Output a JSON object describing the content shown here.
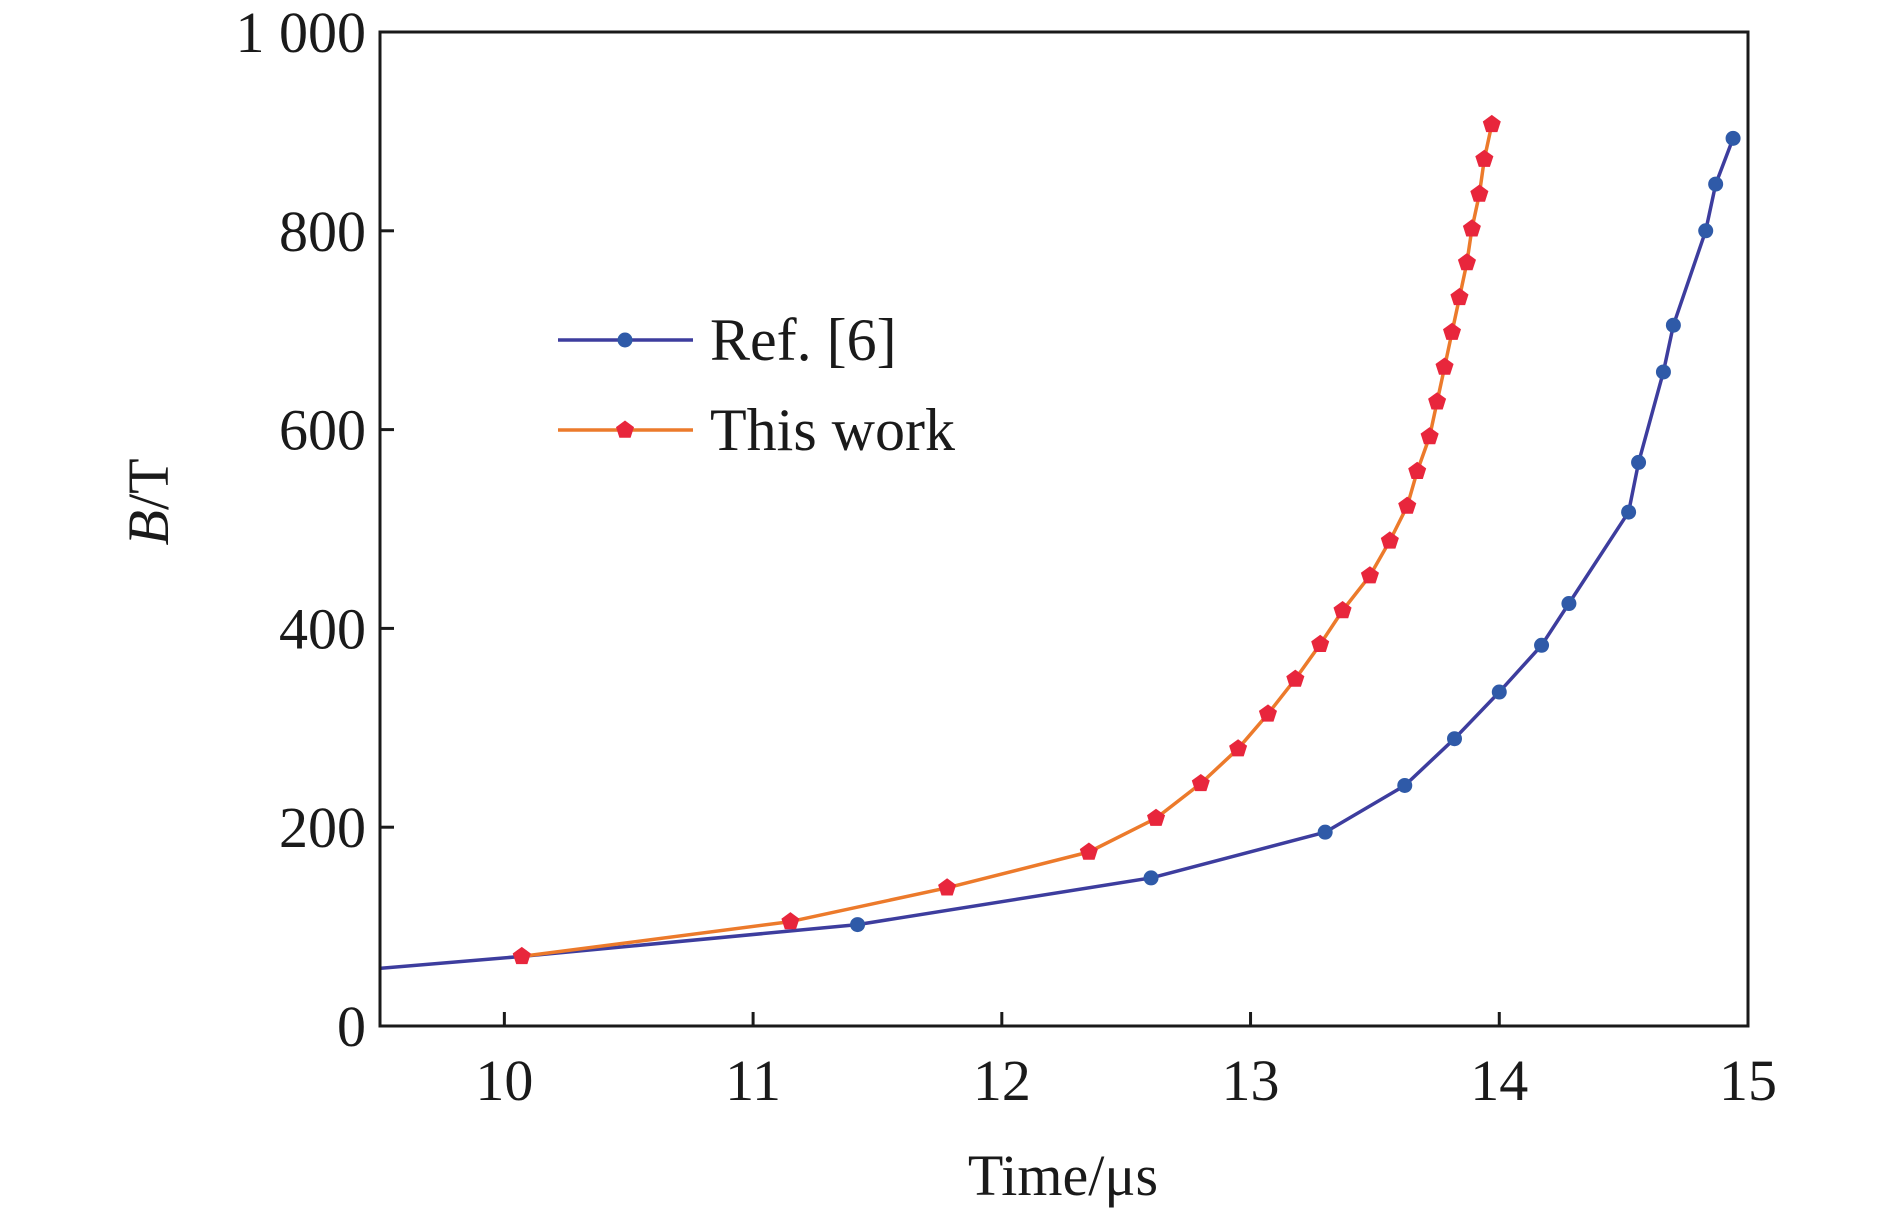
{
  "chart_data": {
    "type": "line",
    "xlabel": "Time/μs",
    "ylabel_var": "B",
    "ylabel_unit": "/T",
    "xlim": [
      9.5,
      15
    ],
    "ylim": [
      0,
      1000
    ],
    "x_ticks": [
      {
        "value": 10,
        "label": "10"
      },
      {
        "value": 11,
        "label": "11"
      },
      {
        "value": 12,
        "label": "12"
      },
      {
        "value": 13,
        "label": "13"
      },
      {
        "value": 14,
        "label": "14"
      },
      {
        "value": 15,
        "label": "15"
      }
    ],
    "y_ticks": [
      {
        "value": 0,
        "label": "0"
      },
      {
        "value": 200,
        "label": "200"
      },
      {
        "value": 400,
        "label": "400"
      },
      {
        "value": 600,
        "label": "600"
      },
      {
        "value": 800,
        "label": "800"
      },
      {
        "value": 1000,
        "label": "1 000"
      }
    ],
    "grid": false,
    "legend_position": "upper-left",
    "series": [
      {
        "name": "Ref. [6]",
        "line_color": "#3d3d9e",
        "marker_color": "#2f5aa8",
        "marker": "circle",
        "line_start": [
          9.5,
          58
        ],
        "points": [
          [
            10.07,
            70
          ],
          [
            11.42,
            102
          ],
          [
            12.6,
            149
          ],
          [
            13.3,
            195
          ],
          [
            13.62,
            242
          ],
          [
            13.82,
            289
          ],
          [
            14.0,
            336
          ],
          [
            14.17,
            383
          ],
          [
            14.28,
            425
          ],
          [
            14.52,
            517
          ],
          [
            14.56,
            567
          ],
          [
            14.66,
            658
          ],
          [
            14.7,
            705
          ],
          [
            14.83,
            800
          ],
          [
            14.87,
            847
          ],
          [
            14.94,
            893
          ]
        ]
      },
      {
        "name": "This work",
        "line_color": "#ec7a2b",
        "marker_color": "#e8263c",
        "marker": "pentagon",
        "points": [
          [
            10.07,
            70
          ],
          [
            11.15,
            105
          ],
          [
            11.78,
            139
          ],
          [
            12.35,
            175
          ],
          [
            12.62,
            209
          ],
          [
            12.8,
            244
          ],
          [
            12.95,
            279
          ],
          [
            13.07,
            314
          ],
          [
            13.18,
            349
          ],
          [
            13.28,
            384
          ],
          [
            13.37,
            418
          ],
          [
            13.48,
            453
          ],
          [
            13.56,
            488
          ],
          [
            13.63,
            523
          ],
          [
            13.67,
            558
          ],
          [
            13.72,
            593
          ],
          [
            13.75,
            628
          ],
          [
            13.78,
            663
          ],
          [
            13.81,
            698
          ],
          [
            13.84,
            733
          ],
          [
            13.87,
            768
          ],
          [
            13.89,
            802
          ],
          [
            13.92,
            837
          ],
          [
            13.94,
            872
          ],
          [
            13.97,
            907
          ]
        ]
      }
    ]
  }
}
